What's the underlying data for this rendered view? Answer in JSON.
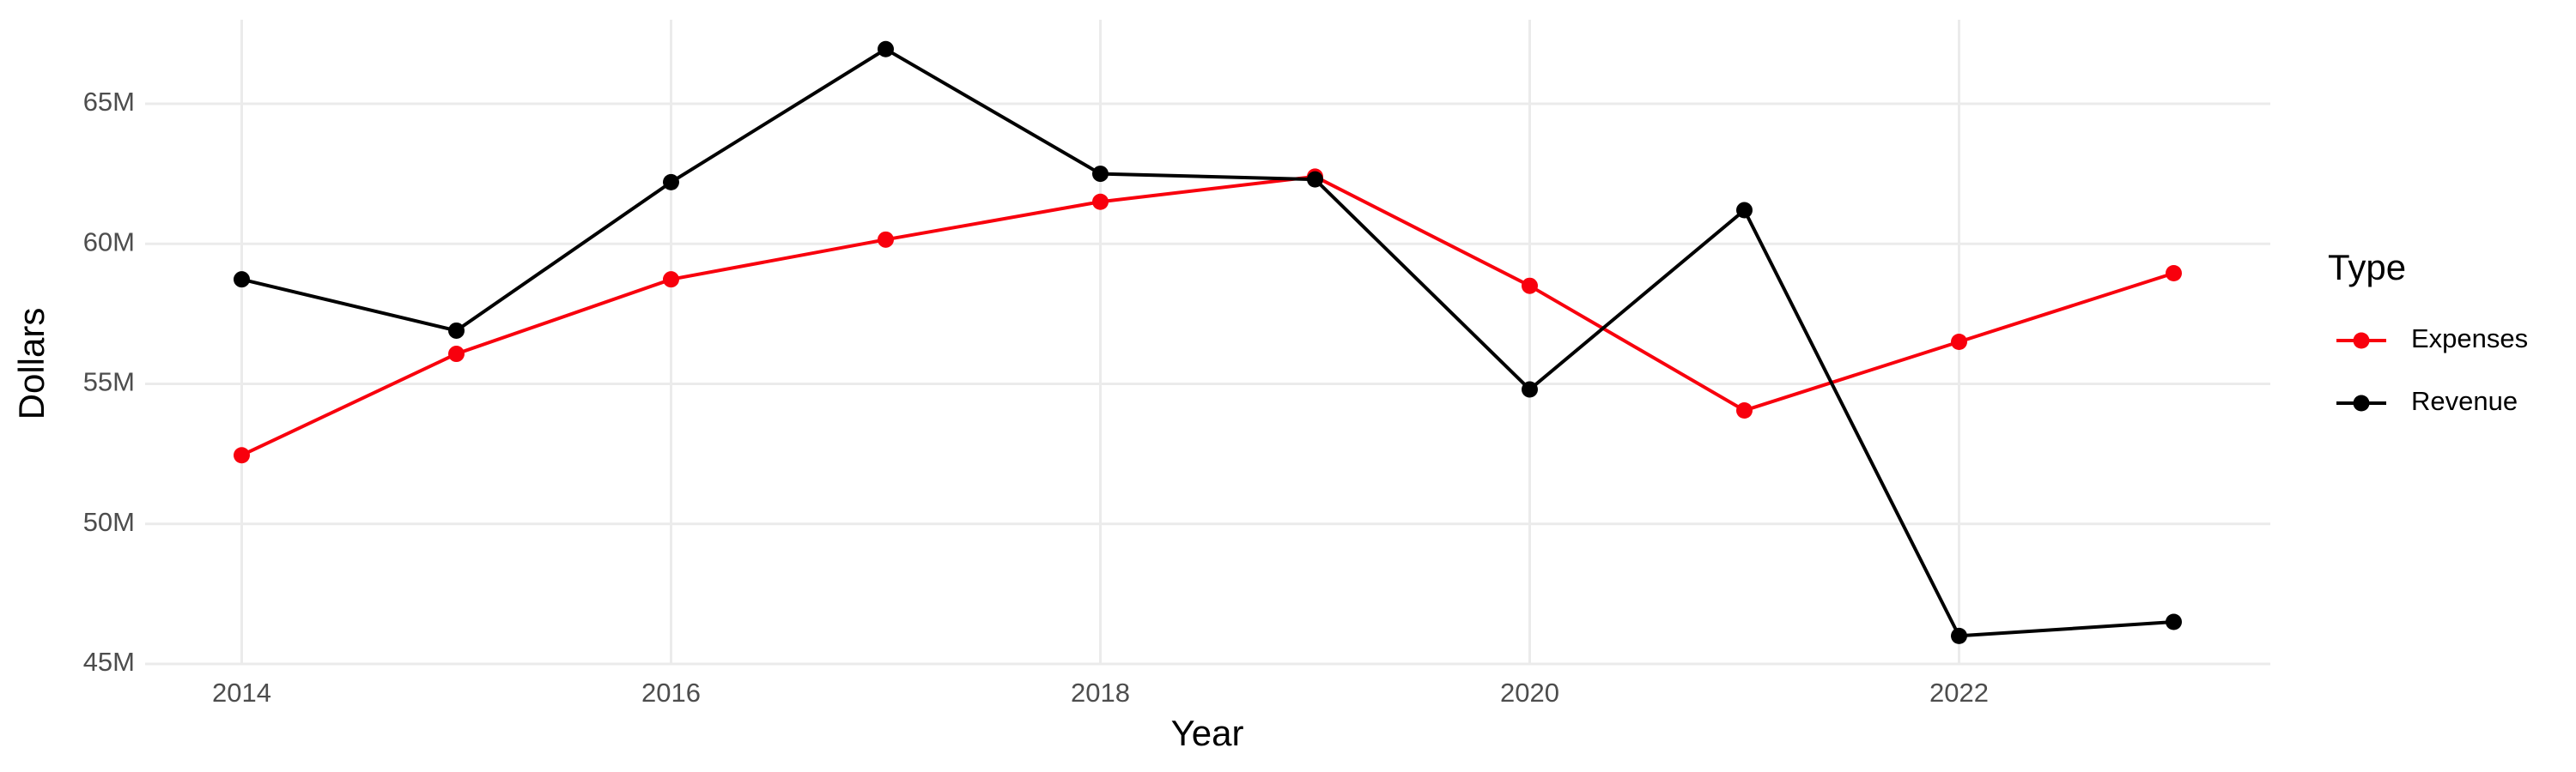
{
  "chart_data": {
    "type": "line",
    "x_label": "Year",
    "y_label": "Dollars",
    "legend_title": "Type",
    "legend_position": "right",
    "grid": true,
    "x": [
      2014,
      2015,
      2016,
      2017,
      2018,
      2019,
      2020,
      2021,
      2022,
      2023
    ],
    "series": [
      {
        "name": "Expenses",
        "color": "#f8000d",
        "values": [
          52450000,
          56070000,
          58730000,
          60150000,
          61500000,
          62400000,
          58500000,
          54050000,
          56500000,
          58950000
        ]
      },
      {
        "name": "Revenue",
        "color": "#000000",
        "values": [
          58730000,
          56900000,
          62200000,
          66950000,
          62500000,
          62300000,
          54800000,
          61200000,
          46000000,
          46500000
        ]
      }
    ],
    "xlim": [
      2013.55,
      2023.45
    ],
    "xticks": [
      2014,
      2016,
      2018,
      2020,
      2022
    ],
    "ylim": [
      45000000,
      68000000
    ],
    "yticks": [
      {
        "value": 45000000,
        "label": "45M"
      },
      {
        "value": 50000000,
        "label": "50M"
      },
      {
        "value": 55000000,
        "label": "55M"
      },
      {
        "value": 60000000,
        "label": "60M"
      },
      {
        "value": 65000000,
        "label": "65M"
      }
    ]
  }
}
